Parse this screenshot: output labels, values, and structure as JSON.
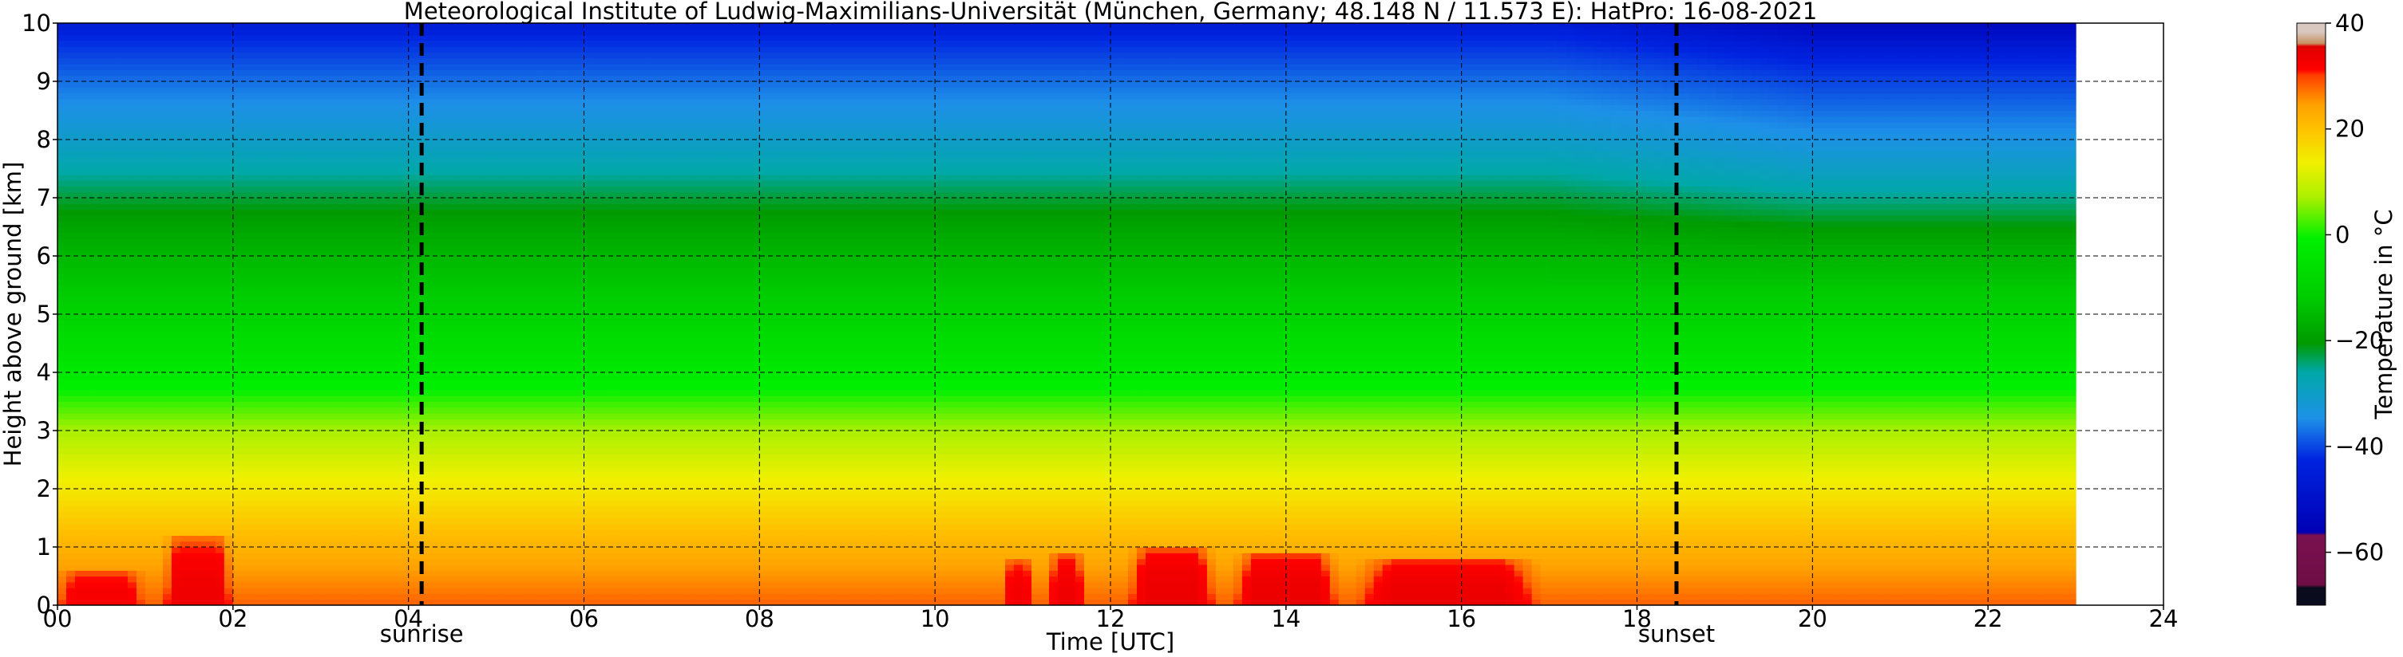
{
  "chart_data": {
    "type": "heatmap",
    "title": "Meteorological Institute of Ludwig-Maximilians-Universität (München, Germany; 48.148 N / 11.573 E):    HatPro: 16-08-2021",
    "xlabel": "Time [UTC]",
    "ylabel": "Height above ground [km]",
    "xlim": [
      0,
      24
    ],
    "ylim": [
      0,
      10
    ],
    "x_ticks": [
      "00",
      "02",
      "04",
      "06",
      "08",
      "10",
      "12",
      "14",
      "16",
      "18",
      "20",
      "22",
      "24"
    ],
    "y_ticks": [
      "0",
      "1",
      "2",
      "3",
      "4",
      "5",
      "6",
      "7",
      "8",
      "9",
      "10"
    ],
    "grid": "dashed",
    "data_time_range": [
      0,
      23
    ],
    "colorbar": {
      "label": "Temperature in °C",
      "range": [
        -70,
        40
      ],
      "ticks": [
        "40",
        "20",
        "0",
        "−20",
        "−40",
        "−60"
      ]
    },
    "annotations": [
      {
        "label": "sunrise",
        "time": 4.15
      },
      {
        "label": "sunset",
        "time": 18.45
      }
    ],
    "temperature_profile": [
      {
        "height_km": 0.0,
        "temperature_c": 24
      },
      {
        "height_km": 0.5,
        "temperature_c": 20
      },
      {
        "height_km": 1.0,
        "temperature_c": 16
      },
      {
        "height_km": 2.0,
        "temperature_c": 9
      },
      {
        "height_km": 3.0,
        "temperature_c": 3
      },
      {
        "height_km": 4.0,
        "temperature_c": -4
      },
      {
        "height_km": 5.0,
        "temperature_c": -10
      },
      {
        "height_km": 6.0,
        "temperature_c": -16
      },
      {
        "height_km": 7.0,
        "temperature_c": -24
      },
      {
        "height_km": 8.0,
        "temperature_c": -33
      },
      {
        "height_km": 9.0,
        "temperature_c": -41
      },
      {
        "height_km": 10.0,
        "temperature_c": -50
      }
    ],
    "warm_episodes": [
      {
        "start": 0.0,
        "end": 1.0,
        "top_km": 0.6,
        "peak_c": 28
      },
      {
        "start": 1.2,
        "end": 2.0,
        "top_km": 1.2,
        "peak_c": 30
      },
      {
        "start": 10.8,
        "end": 11.1,
        "top_km": 0.8,
        "peak_c": 29
      },
      {
        "start": 11.3,
        "end": 11.7,
        "top_km": 0.9,
        "peak_c": 30
      },
      {
        "start": 12.2,
        "end": 13.2,
        "top_km": 1.0,
        "peak_c": 31
      },
      {
        "start": 13.4,
        "end": 14.6,
        "top_km": 0.9,
        "peak_c": 31
      },
      {
        "start": 14.8,
        "end": 16.9,
        "top_km": 0.8,
        "peak_c": 31
      }
    ],
    "evening_upper_cooling": {
      "start": 17.0,
      "end": 23.0,
      "cooling_c": 4
    }
  }
}
